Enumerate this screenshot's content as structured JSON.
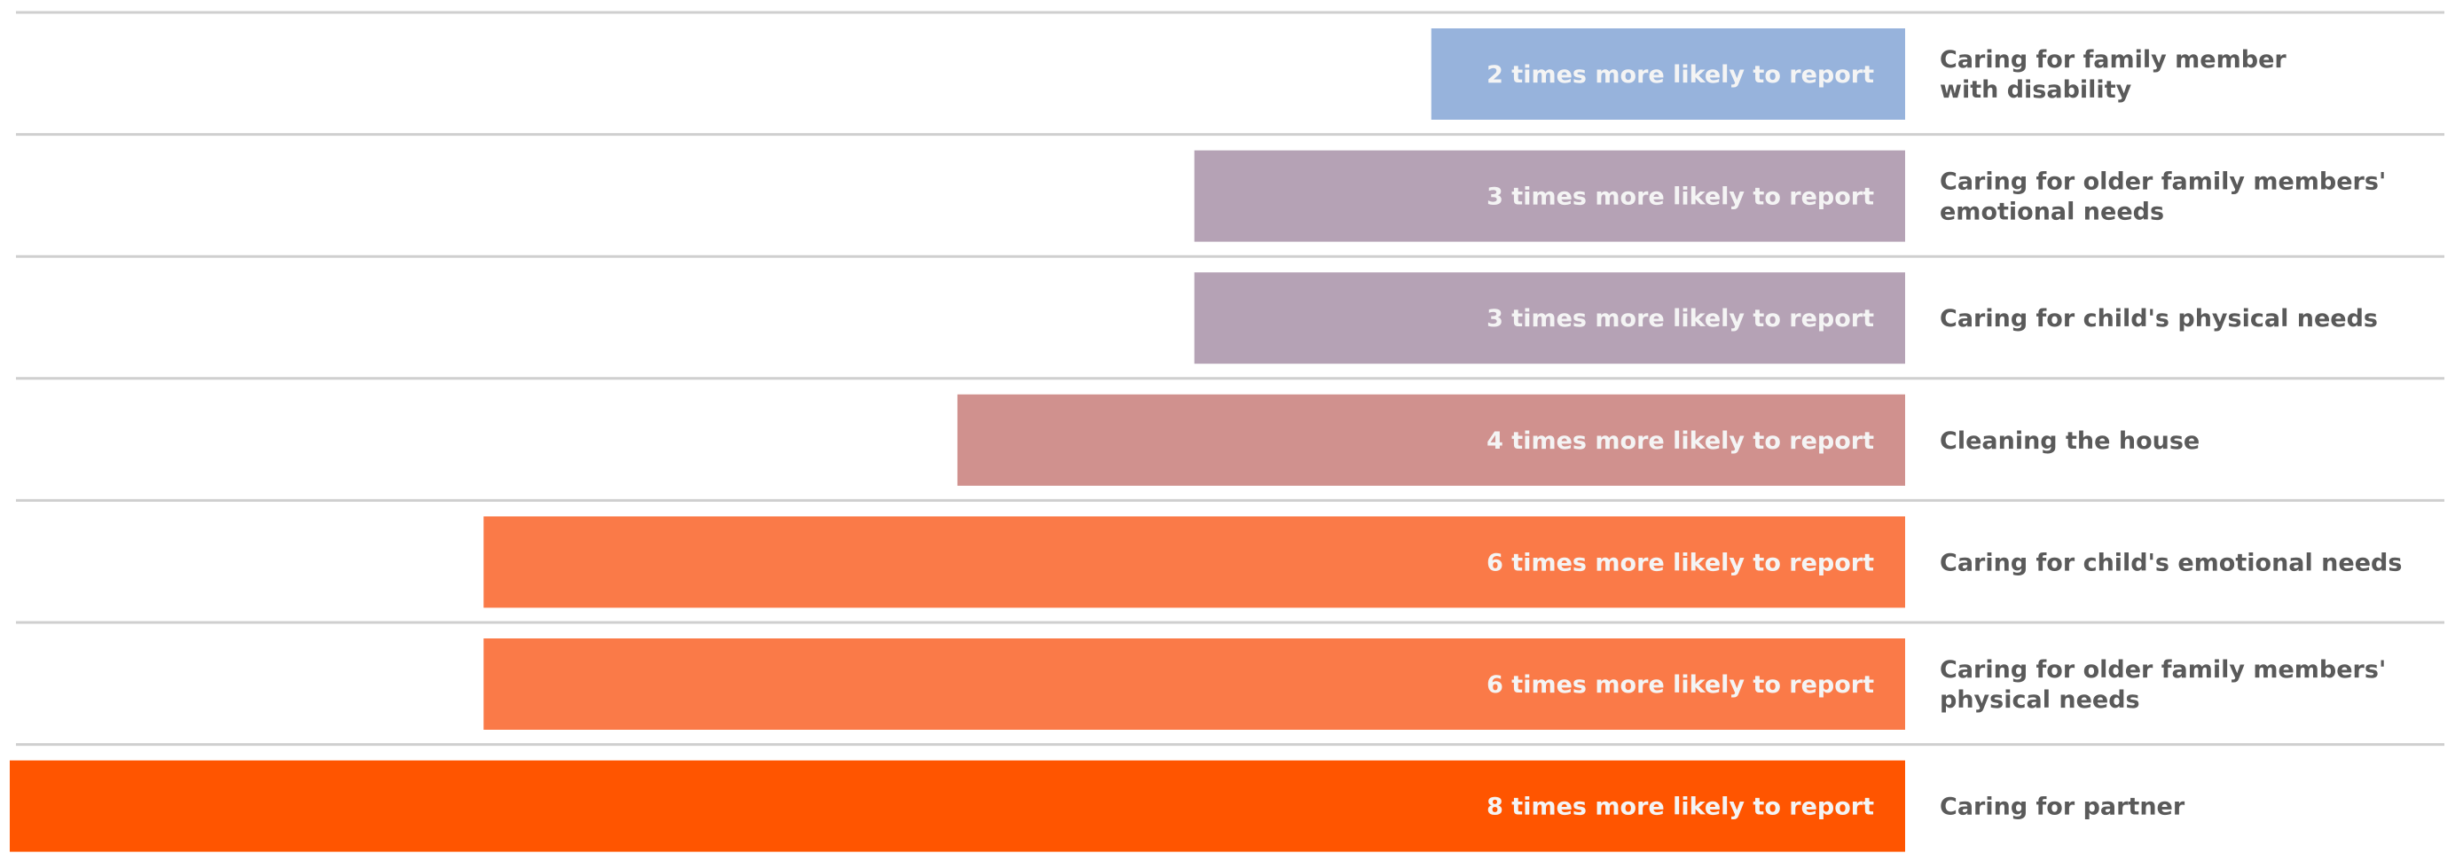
{
  "chart_data": {
    "type": "bar",
    "orientation": "horizontal",
    "categories": [
      [
        "Caring for family member",
        "with disability"
      ],
      [
        "Caring for older family members'",
        "emotional needs"
      ],
      [
        "Caring for child's physical needs"
      ],
      [
        "Cleaning the house"
      ],
      [
        "Caring for child's emotional needs"
      ],
      [
        "Caring for older family members'",
        "physical needs"
      ],
      [
        "Caring for partner"
      ]
    ],
    "values": [
      2,
      3,
      3,
      4,
      6,
      6,
      8
    ],
    "value_labels": [
      "2 times more likely to report",
      "3 times more likely to report",
      "3 times more likely to report",
      "4 times more likely to report",
      "6 times more likely to report",
      "6 times more likely to report",
      "8 times more likely to report"
    ],
    "colors": [
      "#97b3dc",
      "#b5a2b5",
      "#b5a2b5",
      "#d0918e",
      "#fa7a48",
      "#fa7a48",
      "#ff5500"
    ],
    "xlim": [
      0,
      8
    ]
  }
}
